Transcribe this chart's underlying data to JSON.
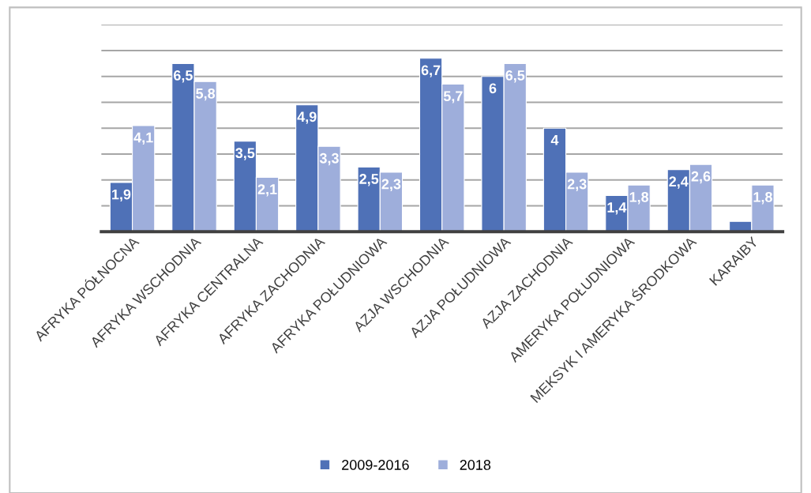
{
  "chart_data": {
    "type": "bar",
    "categories": [
      "AFRYKA PÓŁNOCNA",
      "AFRYKA WSCHODNIA",
      "AFRYKA CENTRALNA",
      "AFRYKA ZACHODNIA",
      "AFRYKA POŁUDNIOWA",
      "AZJA WSCHODNIA",
      "AZJA POŁUDNIOWA",
      "AZJA ZACHODNIA",
      "AMERYKA POŁUDNIOWA",
      "MEKSYK I AMERYKA ŚRODKOWA",
      "KARAIBY"
    ],
    "series": [
      {
        "name": "2009-2016",
        "color": "#4f71b7",
        "values": [
          1.9,
          6.5,
          3.5,
          4.9,
          2.5,
          6.7,
          6,
          4,
          1.4,
          2.4,
          0.4
        ],
        "value_labels": [
          "1,9",
          "6,5",
          "3,5",
          "4,9",
          "2,5",
          "6,7",
          "6",
          "4",
          "1,4",
          "2,4",
          null
        ]
      },
      {
        "name": "2018",
        "color": "#9eaedb",
        "values": [
          4.1,
          5.8,
          2.1,
          3.3,
          2.3,
          5.7,
          6.5,
          2.3,
          1.8,
          2.6,
          1.8
        ],
        "value_labels": [
          "4,1",
          "5,8",
          "2,1",
          "3,3",
          "2,3",
          "5,7",
          "6,5",
          "2,3",
          "1,8",
          "2,6",
          "1,8"
        ]
      }
    ],
    "ylim": [
      0,
      8
    ],
    "yticks": [
      {
        "value": 0,
        "label": null
      },
      {
        "value": 1,
        "label": null
      },
      {
        "value": 2,
        "label": null
      },
      {
        "value": 3,
        "label": null
      },
      {
        "value": 4,
        "label": null
      },
      {
        "value": 5,
        "label": null
      },
      {
        "value": 6,
        "label": null
      },
      {
        "value": 7,
        "label": null
      },
      {
        "value": 8,
        "label": null
      }
    ],
    "tick_labels": "x",
    "grid": "y",
    "legend": "bottom"
  }
}
